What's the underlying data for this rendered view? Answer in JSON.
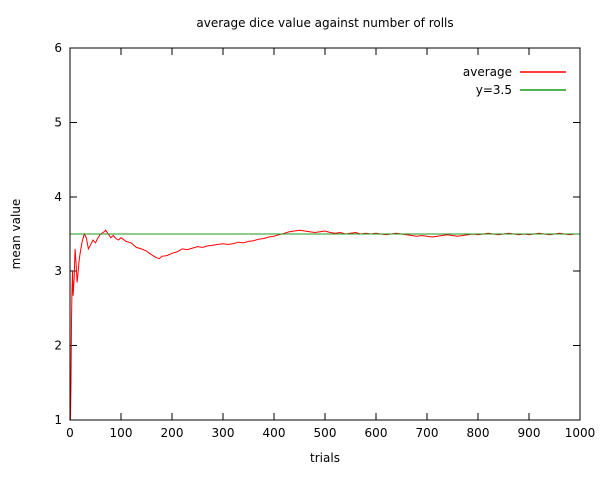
{
  "chart_data": {
    "type": "line",
    "title": "average dice value against number of rolls",
    "xlabel": "trials",
    "ylabel": "mean value",
    "xlim": [
      0,
      1000
    ],
    "ylim": [
      1,
      6
    ],
    "xticks": [
      0,
      100,
      200,
      300,
      400,
      500,
      600,
      700,
      800,
      900,
      1000
    ],
    "yticks": [
      1,
      2,
      3,
      4,
      5,
      6
    ],
    "grid": false,
    "legend_position": "top-right-inside",
    "colors": {
      "axis": "#000000",
      "background": "#ffffff"
    },
    "series": [
      {
        "name": "average",
        "color": "#ff0000",
        "points": [
          [
            1,
            1.0
          ],
          [
            2,
            1.5
          ],
          [
            3,
            2.33
          ],
          [
            4,
            2.75
          ],
          [
            5,
            3.0
          ],
          [
            6,
            2.67
          ],
          [
            8,
            2.9
          ],
          [
            10,
            3.3
          ],
          [
            12,
            3.1
          ],
          [
            14,
            2.85
          ],
          [
            16,
            3.0
          ],
          [
            18,
            3.15
          ],
          [
            20,
            3.25
          ],
          [
            24,
            3.4
          ],
          [
            28,
            3.5
          ],
          [
            32,
            3.45
          ],
          [
            36,
            3.3
          ],
          [
            40,
            3.35
          ],
          [
            45,
            3.42
          ],
          [
            50,
            3.38
          ],
          [
            55,
            3.45
          ],
          [
            60,
            3.5
          ],
          [
            65,
            3.52
          ],
          [
            70,
            3.55
          ],
          [
            75,
            3.5
          ],
          [
            80,
            3.45
          ],
          [
            85,
            3.48
          ],
          [
            90,
            3.44
          ],
          [
            95,
            3.42
          ],
          [
            100,
            3.45
          ],
          [
            110,
            3.4
          ],
          [
            120,
            3.38
          ],
          [
            130,
            3.32
          ],
          [
            140,
            3.3
          ],
          [
            150,
            3.27
          ],
          [
            160,
            3.22
          ],
          [
            170,
            3.18
          ],
          [
            175,
            3.17
          ],
          [
            180,
            3.2
          ],
          [
            190,
            3.21
          ],
          [
            200,
            3.24
          ],
          [
            210,
            3.26
          ],
          [
            220,
            3.3
          ],
          [
            230,
            3.29
          ],
          [
            240,
            3.31
          ],
          [
            250,
            3.33
          ],
          [
            260,
            3.32
          ],
          [
            270,
            3.34
          ],
          [
            280,
            3.35
          ],
          [
            290,
            3.36
          ],
          [
            300,
            3.37
          ],
          [
            310,
            3.36
          ],
          [
            320,
            3.37
          ],
          [
            330,
            3.39
          ],
          [
            340,
            3.38
          ],
          [
            350,
            3.4
          ],
          [
            360,
            3.41
          ],
          [
            370,
            3.43
          ],
          [
            380,
            3.44
          ],
          [
            390,
            3.46
          ],
          [
            400,
            3.47
          ],
          [
            410,
            3.49
          ],
          [
            420,
            3.51
          ],
          [
            430,
            3.53
          ],
          [
            440,
            3.54
          ],
          [
            450,
            3.55
          ],
          [
            460,
            3.54
          ],
          [
            470,
            3.53
          ],
          [
            480,
            3.52
          ],
          [
            490,
            3.53
          ],
          [
            500,
            3.54
          ],
          [
            510,
            3.52
          ],
          [
            520,
            3.51
          ],
          [
            530,
            3.52
          ],
          [
            540,
            3.5
          ],
          [
            550,
            3.51
          ],
          [
            560,
            3.52
          ],
          [
            570,
            3.5
          ],
          [
            580,
            3.51
          ],
          [
            590,
            3.5
          ],
          [
            600,
            3.51
          ],
          [
            610,
            3.5
          ],
          [
            620,
            3.49
          ],
          [
            630,
            3.5
          ],
          [
            640,
            3.51
          ],
          [
            650,
            3.5
          ],
          [
            660,
            3.49
          ],
          [
            670,
            3.48
          ],
          [
            680,
            3.47
          ],
          [
            690,
            3.48
          ],
          [
            700,
            3.47
          ],
          [
            710,
            3.46
          ],
          [
            720,
            3.47
          ],
          [
            730,
            3.48
          ],
          [
            740,
            3.49
          ],
          [
            750,
            3.48
          ],
          [
            760,
            3.47
          ],
          [
            770,
            3.48
          ],
          [
            780,
            3.49
          ],
          [
            790,
            3.5
          ],
          [
            800,
            3.49
          ],
          [
            810,
            3.5
          ],
          [
            820,
            3.51
          ],
          [
            830,
            3.5
          ],
          [
            840,
            3.49
          ],
          [
            850,
            3.5
          ],
          [
            860,
            3.51
          ],
          [
            870,
            3.5
          ],
          [
            880,
            3.49
          ],
          [
            890,
            3.5
          ],
          [
            900,
            3.49
          ],
          [
            910,
            3.5
          ],
          [
            920,
            3.51
          ],
          [
            930,
            3.5
          ],
          [
            940,
            3.49
          ],
          [
            950,
            3.5
          ],
          [
            960,
            3.51
          ],
          [
            970,
            3.5
          ],
          [
            980,
            3.49
          ],
          [
            990,
            3.5
          ],
          [
            1000,
            3.5
          ]
        ]
      },
      {
        "name": "y=3.5",
        "color": "#1a9a1a",
        "points": [
          [
            0,
            3.5
          ],
          [
            1000,
            3.5
          ]
        ]
      }
    ]
  }
}
